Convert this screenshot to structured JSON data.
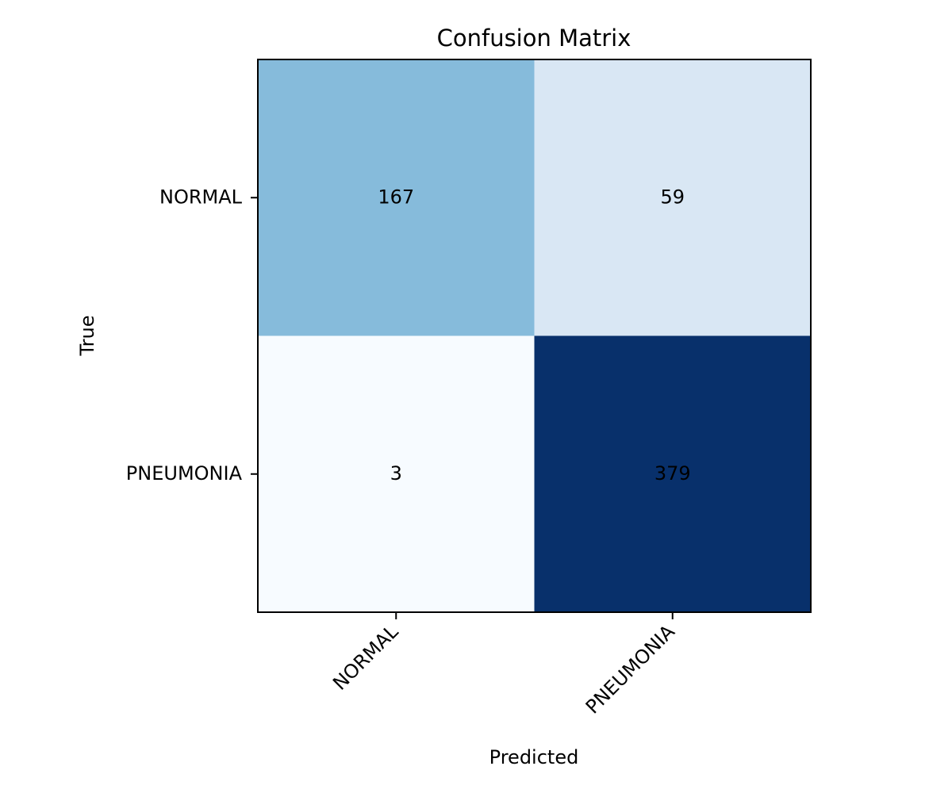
{
  "chart_data": {
    "type": "heatmap",
    "title": "Confusion Matrix",
    "xlabel": "Predicted",
    "ylabel": "True",
    "x_categories": [
      "NORMAL",
      "PNEUMONIA"
    ],
    "y_categories": [
      "NORMAL",
      "PNEUMONIA"
    ],
    "values": [
      [
        167,
        59
      ],
      [
        3,
        379
      ]
    ],
    "cell_colors": [
      [
        "#86bbdb",
        "#d9e7f4"
      ],
      [
        "#f7fbff",
        "#08306b"
      ]
    ],
    "text_color": "#000000",
    "colormap": "Blues"
  }
}
